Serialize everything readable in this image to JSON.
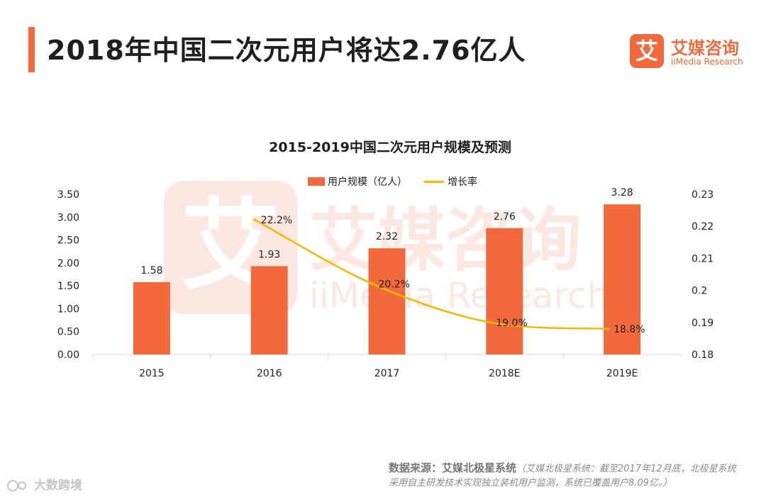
{
  "page": {
    "title": "2018年中国二次元用户将达2.76亿人"
  },
  "logo": {
    "mark": "艾",
    "name": "艾媒咨询",
    "sub": "iiMedia Research"
  },
  "watermark": {
    "mark": "艾",
    "name": "艾媒咨询",
    "sub": "iiMedia Research"
  },
  "source": {
    "label": "数据来源：艾媒北极星系统",
    "note": "（艾媒北极星系统：截至2017年12月底，北极星系统采用自主研发技术实现独立装机用户监测，系统已覆盖用户8.09亿。）"
  },
  "corner_watermark": {
    "text": "大数跨境"
  },
  "colors": {
    "bar": "#f26a3b",
    "line": "#f5b700",
    "accent": "#f26a3b"
  },
  "chart_data": {
    "type": "bar",
    "title": "2015-2019中国二次元用户规模及预测",
    "categories": [
      "2015",
      "2016",
      "2017",
      "2018E",
      "2019E"
    ],
    "series": [
      {
        "name": "用户规模（亿人）",
        "type": "bar",
        "axis": "left",
        "values": [
          1.58,
          1.93,
          2.32,
          2.76,
          3.28
        ],
        "labels": [
          "1.58",
          "1.93",
          "2.32",
          "2.76",
          "3.28"
        ]
      },
      {
        "name": "增长率",
        "type": "line",
        "axis": "right",
        "values": [
          null,
          0.222,
          0.202,
          0.19,
          0.188
        ],
        "labels": [
          null,
          "22.2%",
          "20.2%",
          "19.0%",
          "18.8%"
        ]
      }
    ],
    "y_left": {
      "min": 0,
      "max": 3.5,
      "ticks": [
        0,
        0.5,
        1.0,
        1.5,
        2.0,
        2.5,
        3.0,
        3.5
      ],
      "tick_labels": [
        "0.00",
        "0.50",
        "1.00",
        "1.50",
        "2.00",
        "2.50",
        "3.00",
        "3.50"
      ]
    },
    "y_right": {
      "min": 0.18,
      "max": 0.23,
      "ticks": [
        0.18,
        0.19,
        0.2,
        0.21,
        0.22,
        0.23
      ],
      "tick_labels": [
        "0.18",
        "0.19",
        "0.2",
        "0.21",
        "0.22",
        "0.23"
      ]
    },
    "legend": "top-center",
    "grid": false
  }
}
